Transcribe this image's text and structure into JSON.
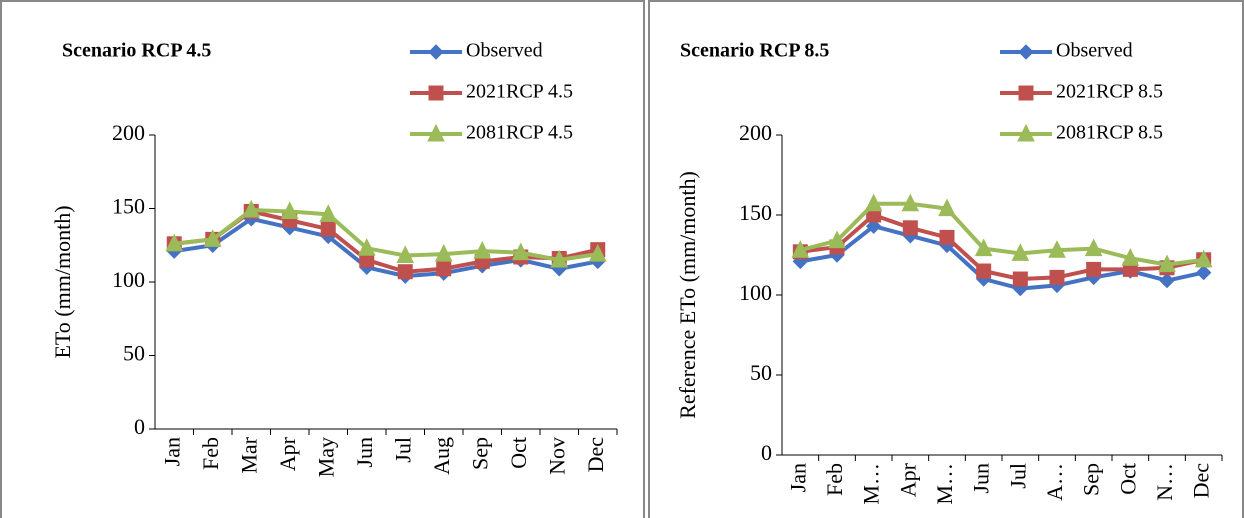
{
  "chart_data": [
    {
      "type": "line",
      "title": "Scenario RCP 4.5",
      "ylabel": "ETo (mm/month)",
      "categories": [
        "Jan",
        "Feb",
        "Mar",
        "Apr",
        "May",
        "Jun",
        "Jul",
        "Aug",
        "Sep",
        "Oct",
        "Nov",
        "Dec"
      ],
      "ylim": [
        0,
        200
      ],
      "yticks": [
        0,
        50,
        100,
        150,
        200
      ],
      "series": [
        {
          "name": "Observed",
          "color": "#4472c4",
          "marker": "diamond",
          "values": [
            121,
            125,
            143,
            137,
            131,
            110,
            104,
            106,
            111,
            115,
            109,
            114
          ]
        },
        {
          "name": "2021RCP 4.5",
          "color": "#c0504d",
          "marker": "square",
          "values": [
            126,
            129,
            148,
            142,
            136,
            115,
            107,
            109,
            114,
            117,
            116,
            122
          ]
        },
        {
          "name": "2081RCP 4.5",
          "color": "#9bbb59",
          "marker": "triangle",
          "values": [
            126,
            129,
            149,
            148,
            146,
            123,
            118,
            119,
            121,
            120,
            115,
            119
          ]
        }
      ]
    },
    {
      "type": "line",
      "title": "Scenario RCP 8.5",
      "ylabel": "Reference ETo (mm/month)",
      "categories": [
        "Jan",
        "Feb",
        "M…",
        "Apr",
        "M…",
        "Jun",
        "Jul",
        "A…",
        "Sep",
        "Oct",
        "N…",
        "Dec"
      ],
      "ylim": [
        0,
        200
      ],
      "yticks": [
        0,
        50,
        100,
        150,
        200
      ],
      "series": [
        {
          "name": "Observed",
          "color": "#4472c4",
          "marker": "diamond",
          "values": [
            121,
            125,
            143,
            137,
            131,
            110,
            104,
            106,
            111,
            115,
            109,
            114
          ]
        },
        {
          "name": "2021RCP 8.5",
          "color": "#c0504d",
          "marker": "square",
          "values": [
            127,
            130,
            150,
            142,
            136,
            115,
            110,
            111,
            116,
            116,
            117,
            122
          ]
        },
        {
          "name": "2081RCP 8.5",
          "color": "#9bbb59",
          "marker": "triangle",
          "values": [
            128,
            134,
            157,
            157,
            154,
            129,
            126,
            128,
            129,
            123,
            119,
            122
          ]
        }
      ]
    }
  ]
}
